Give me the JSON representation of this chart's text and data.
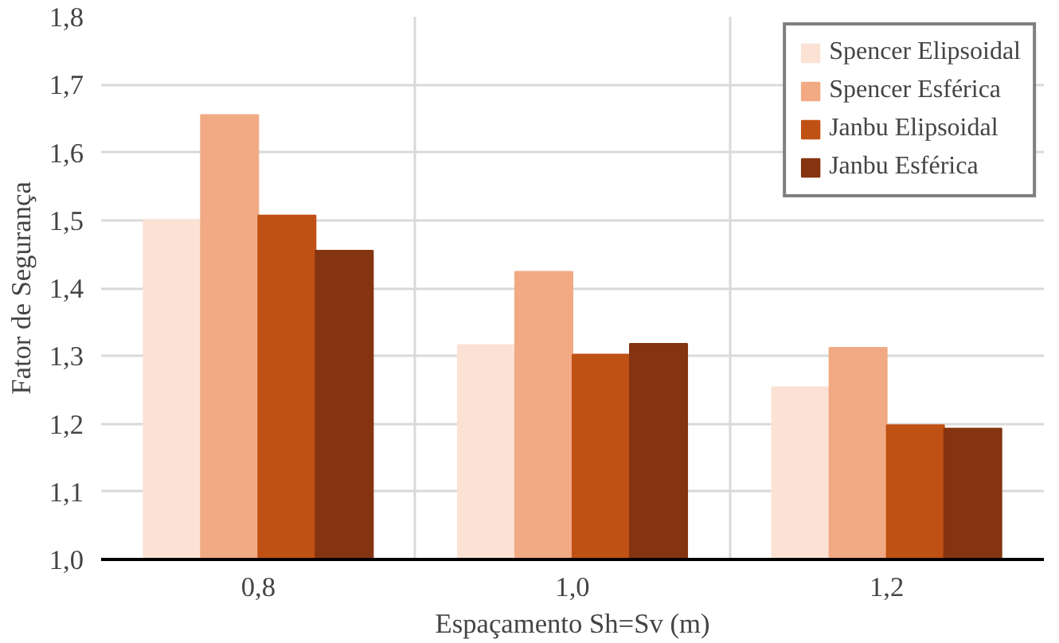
{
  "chart_data": {
    "type": "bar",
    "xlabel": "Espaçamento Sh=Sv (m)",
    "ylabel": "Fator de Segurança",
    "categories": [
      "0,8",
      "1,0",
      "1,2"
    ],
    "series": [
      {
        "name": "Spencer Elipsoidal",
        "color": "#fbe2d5",
        "values": [
          1.5,
          1.316,
          1.254
        ]
      },
      {
        "name": "Spencer Esférica",
        "color": "#f1aa84",
        "values": [
          1.655,
          1.424,
          1.312
        ]
      },
      {
        "name": "Janbu Elipsoidal",
        "color": "#c05114",
        "values": [
          1.507,
          1.302,
          1.198
        ]
      },
      {
        "name": "Janbu Esférica",
        "color": "#843411",
        "values": [
          1.455,
          1.318,
          1.193
        ]
      }
    ],
    "ylim": [
      1.0,
      1.8
    ],
    "yticks": [
      {
        "value": 1.0,
        "label": "1,0"
      },
      {
        "value": 1.1,
        "label": "1,1"
      },
      {
        "value": 1.2,
        "label": "1,2"
      },
      {
        "value": 1.3,
        "label": "1,3"
      },
      {
        "value": 1.4,
        "label": "1,4"
      },
      {
        "value": 1.5,
        "label": "1,5"
      },
      {
        "value": 1.6,
        "label": "1,6"
      },
      {
        "value": 1.7,
        "label": "1,7"
      },
      {
        "value": 1.8,
        "label": "1,8"
      }
    ],
    "grid": true,
    "legend": "top right"
  }
}
